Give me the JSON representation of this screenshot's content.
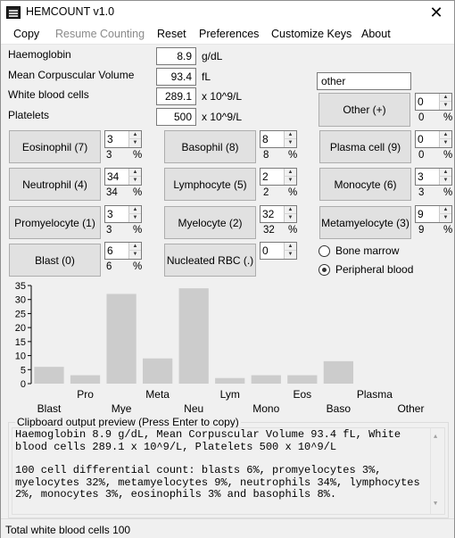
{
  "window": {
    "title": "HEMCOUNT v1.0",
    "close": "✕"
  },
  "menu": {
    "copy": "Copy",
    "resume": "Resume Counting",
    "reset": "Reset",
    "preferences": "Preferences",
    "customize": "Customize Keys",
    "about": "About"
  },
  "blood": {
    "hb_label": "Haemoglobin",
    "hb_value": "8.9",
    "hb_unit": "g/dL",
    "mcv_label": "Mean Corpuscular Volume",
    "mcv_value": "93.4",
    "mcv_unit": "fL",
    "wbc_label": "White blood cells",
    "wbc_value": "289.1",
    "wbc_unit": "x 10^9/L",
    "plt_label": "Platelets",
    "plt_value": "500",
    "plt_unit": "x 10^9/L"
  },
  "other": {
    "name": "other",
    "button": "Other (+)",
    "count": "0",
    "pct": "0"
  },
  "pct_sign": "%",
  "cells": {
    "eosinophil": {
      "label": "Eosinophil (7)",
      "count": "3",
      "pct": "3"
    },
    "basophil": {
      "label": "Basophil (8)",
      "count": "8",
      "pct": "8"
    },
    "plasma": {
      "label": "Plasma cell (9)",
      "count": "0",
      "pct": "0"
    },
    "neutrophil": {
      "label": "Neutrophil (4)",
      "count": "34",
      "pct": "34"
    },
    "lymphocyte": {
      "label": "Lymphocyte (5)",
      "count": "2",
      "pct": "2"
    },
    "monocyte": {
      "label": "Monocyte (6)",
      "count": "3",
      "pct": "3"
    },
    "promyelocyte": {
      "label": "Promyelocyte (1)",
      "count": "3",
      "pct": "3"
    },
    "myelocyte": {
      "label": "Myelocyte (2)",
      "count": "32",
      "pct": "32"
    },
    "metamyelocyte": {
      "label": "Metamyelocyte (3)",
      "count": "9",
      "pct": "9"
    },
    "blast": {
      "label": "Blast (0)",
      "count": "6",
      "pct": "6"
    },
    "nrbc": {
      "label": "Nucleated RBC (.)",
      "count": "0"
    }
  },
  "sample": {
    "bone_marrow": "Bone marrow",
    "peripheral_blood": "Peripheral blood",
    "selected": "peripheral_blood"
  },
  "chart_data": {
    "type": "bar",
    "categories": [
      "Blast",
      "Pro",
      "Mye",
      "Meta",
      "Neu",
      "Lym",
      "Mono",
      "Eos",
      "Baso",
      "Plasma",
      "Other"
    ],
    "values": [
      6,
      3,
      32,
      9,
      34,
      2,
      3,
      3,
      8,
      0,
      0
    ],
    "ylim": [
      0,
      35
    ],
    "yticks": [
      0,
      5,
      10,
      15,
      20,
      25,
      30,
      35
    ],
    "bar_color": "#cccccc",
    "grid": false
  },
  "clipboard": {
    "legend": "Clipboard output preview (Press Enter to copy)",
    "line1": "Haemoglobin 8.9 g/dL, Mean Corpuscular Volume 93.4 fL, White blood cells 289.1 x 10^9/L, Platelets 500 x 10^9/L",
    "line2": "100 cell differential count: blasts 6%, promyelocytes 3%, myelocytes 32%, metamyelocytes 9%, neutrophils 34%, lymphocytes 2%, monocytes 3%, eosinophils 3% and basophils 8%."
  },
  "status": {
    "text": "Total white blood cells  100"
  }
}
